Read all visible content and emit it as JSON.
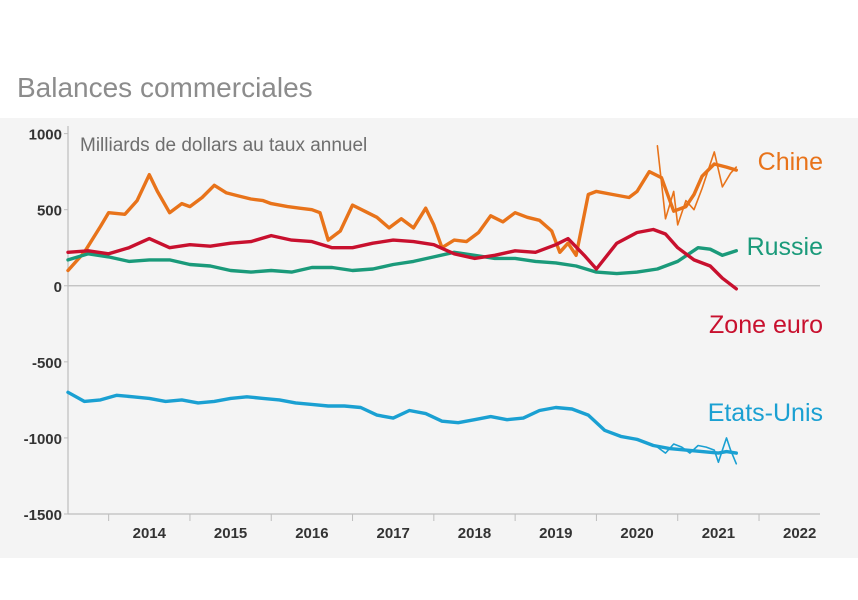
{
  "title": "Balances commerciales",
  "chart_data": {
    "type": "line",
    "title": "Balances commerciales",
    "unit_label": "Milliards de dollars au taux annuel",
    "ylim": [
      -1500,
      1050
    ],
    "xlim": [
      2013.5,
      2022.75
    ],
    "y_ticks": [
      "1000",
      "500",
      "0",
      "-500",
      "-1000",
      "-1500"
    ],
    "x_ticks": [
      "2014",
      "2015",
      "2016",
      "2017",
      "2018",
      "2019",
      "2020",
      "2021",
      "2022"
    ],
    "series": [
      {
        "name": "Chine",
        "color": "#e8731a",
        "x": [
          2013.5,
          2013.7,
          2013.9,
          2014.0,
          2014.2,
          2014.35,
          2014.5,
          2014.6,
          2014.75,
          2014.9,
          2015.0,
          2015.15,
          2015.3,
          2015.45,
          2015.6,
          2015.75,
          2015.9,
          2016.0,
          2016.2,
          2016.35,
          2016.5,
          2016.6,
          2016.7,
          2016.85,
          2017.0,
          2017.15,
          2017.3,
          2017.45,
          2017.6,
          2017.75,
          2017.9,
          2018.0,
          2018.1,
          2018.25,
          2018.4,
          2018.55,
          2018.7,
          2018.85,
          2019.0,
          2019.15,
          2019.3,
          2019.45,
          2019.55,
          2019.65,
          2019.75,
          2019.9,
          2020.0,
          2020.2,
          2020.4,
          2020.5,
          2020.65,
          2020.8,
          2020.95,
          2021.1,
          2021.2,
          2021.3,
          2021.45,
          2021.6,
          2021.72
        ],
        "values": [
          100,
          220,
          390,
          480,
          470,
          560,
          730,
          620,
          480,
          540,
          520,
          580,
          660,
          610,
          590,
          570,
          560,
          540,
          520,
          510,
          500,
          480,
          300,
          360,
          530,
          490,
          450,
          380,
          440,
          380,
          510,
          400,
          250,
          300,
          290,
          350,
          460,
          420,
          480,
          450,
          430,
          360,
          220,
          280,
          200,
          600,
          620,
          600,
          580,
          620,
          750,
          710,
          490,
          520,
          600,
          720,
          800,
          780,
          760
        ]
      },
      {
        "name": "Chine (mensuel)",
        "color": "#e8731a",
        "x": [
          2020.75,
          2020.85,
          2020.95,
          2021.0,
          2021.1,
          2021.2,
          2021.3,
          2021.45,
          2021.55,
          2021.65,
          2021.72
        ],
        "values": [
          920,
          440,
          620,
          400,
          560,
          500,
          640,
          880,
          650,
          740,
          780
        ]
      },
      {
        "name": "Russie",
        "color": "#1a9a7a",
        "x": [
          2013.5,
          2013.75,
          2014.0,
          2014.25,
          2014.5,
          2014.75,
          2015.0,
          2015.25,
          2015.5,
          2015.75,
          2016.0,
          2016.25,
          2016.5,
          2016.75,
          2017.0,
          2017.25,
          2017.5,
          2017.75,
          2018.0,
          2018.25,
          2018.5,
          2018.75,
          2019.0,
          2019.25,
          2019.5,
          2019.75,
          2020.0,
          2020.25,
          2020.5,
          2020.75,
          2021.0,
          2021.25,
          2021.4,
          2021.55,
          2021.72
        ],
        "values": [
          170,
          210,
          190,
          160,
          170,
          170,
          140,
          130,
          100,
          90,
          100,
          90,
          120,
          120,
          100,
          110,
          140,
          160,
          190,
          220,
          200,
          180,
          180,
          160,
          150,
          130,
          90,
          80,
          90,
          110,
          160,
          250,
          240,
          200,
          230
        ]
      },
      {
        "name": "Zone euro",
        "color": "#c8102e",
        "x": [
          2013.5,
          2013.75,
          2014.0,
          2014.25,
          2014.5,
          2014.75,
          2015.0,
          2015.25,
          2015.5,
          2015.75,
          2016.0,
          2016.25,
          2016.5,
          2016.75,
          2017.0,
          2017.25,
          2017.5,
          2017.75,
          2018.0,
          2018.25,
          2018.5,
          2018.75,
          2019.0,
          2019.25,
          2019.5,
          2019.65,
          2019.85,
          2020.0,
          2020.25,
          2020.5,
          2020.7,
          2020.85,
          2021.0,
          2021.2,
          2021.4,
          2021.55,
          2021.72
        ],
        "values": [
          220,
          230,
          210,
          250,
          310,
          250,
          270,
          260,
          280,
          290,
          330,
          300,
          290,
          250,
          250,
          280,
          300,
          290,
          270,
          210,
          180,
          200,
          230,
          220,
          270,
          310,
          200,
          110,
          280,
          350,
          370,
          340,
          250,
          170,
          130,
          50,
          -20
        ]
      },
      {
        "name": "Etats-Unis",
        "color": "#1aa0d2",
        "x": [
          2013.5,
          2013.7,
          2013.9,
          2014.1,
          2014.3,
          2014.5,
          2014.7,
          2014.9,
          2015.1,
          2015.3,
          2015.5,
          2015.7,
          2015.9,
          2016.1,
          2016.3,
          2016.5,
          2016.7,
          2016.9,
          2017.1,
          2017.3,
          2017.5,
          2017.7,
          2017.9,
          2018.1,
          2018.3,
          2018.5,
          2018.7,
          2018.9,
          2019.1,
          2019.3,
          2019.5,
          2019.7,
          2019.9,
          2020.1,
          2020.3,
          2020.5,
          2020.7,
          2020.9,
          2021.1,
          2021.3,
          2021.5,
          2021.6,
          2021.72
        ],
        "values": [
          -700,
          -760,
          -750,
          -720,
          -730,
          -740,
          -760,
          -750,
          -770,
          -760,
          -740,
          -730,
          -740,
          -750,
          -770,
          -780,
          -790,
          -790,
          -800,
          -850,
          -870,
          -820,
          -840,
          -890,
          -900,
          -880,
          -860,
          -880,
          -870,
          -820,
          -800,
          -810,
          -850,
          -950,
          -990,
          -1010,
          -1050,
          -1070,
          -1080,
          -1090,
          -1100,
          -1090,
          -1100
        ]
      },
      {
        "name": "Etats-Unis (mensuel)",
        "color": "#1aa0d2",
        "x": [
          2020.75,
          2020.85,
          2020.95,
          2021.05,
          2021.15,
          2021.25,
          2021.35,
          2021.45,
          2021.5,
          2021.55,
          2021.6,
          2021.65,
          2021.72
        ],
        "values": [
          -1060,
          -1100,
          -1040,
          -1060,
          -1100,
          -1050,
          -1060,
          -1080,
          -1160,
          -1080,
          -1000,
          -1080,
          -1170
        ]
      }
    ],
    "labels": [
      {
        "text": "Chine",
        "color": "#e8731a"
      },
      {
        "text": "Russie",
        "color": "#1a9a7a"
      },
      {
        "text": "Zone euro",
        "color": "#c8102e"
      },
      {
        "text": "Etats-Unis",
        "color": "#1aa0d2"
      }
    ]
  }
}
